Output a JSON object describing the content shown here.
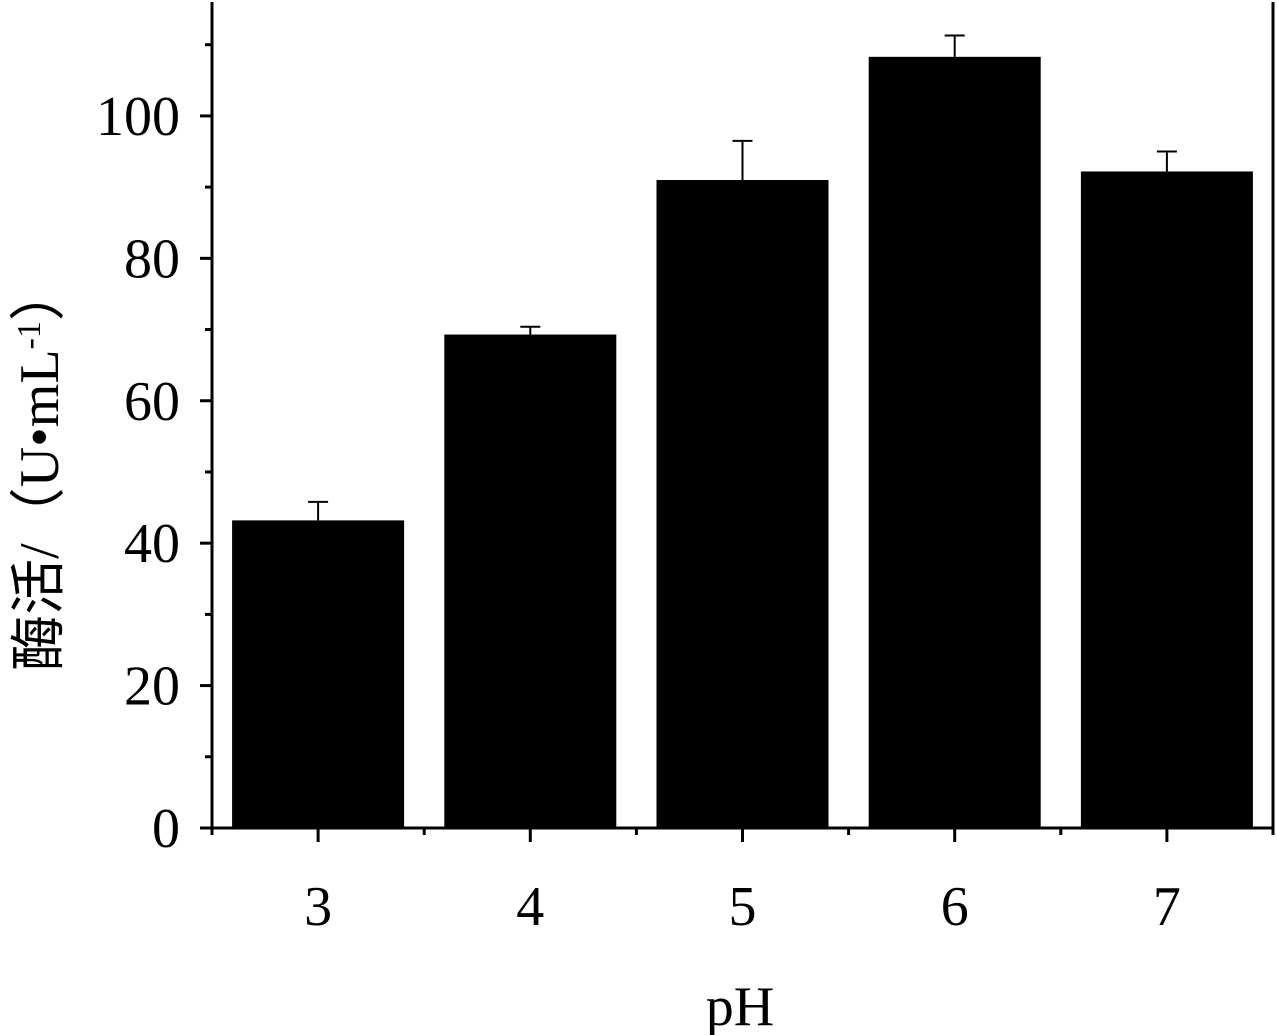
{
  "chart_data": {
    "type": "bar",
    "categories": [
      "3",
      "4",
      "5",
      "6",
      "7"
    ],
    "values": [
      43.2,
      69.3,
      91.0,
      108.3,
      92.2
    ],
    "error_plus": [
      2.6,
      1.1,
      5.5,
      3.0,
      2.8
    ],
    "xlabel": "pH",
    "ylabel": "酶活/（U•mL",
    "ylabel_superscript": "-1",
    "ylabel_suffix": "）",
    "ylim": [
      0,
      116
    ],
    "yticks": [
      0,
      20,
      40,
      60,
      80,
      100
    ],
    "y_minor_ticks": [
      10,
      30,
      50,
      70,
      90,
      110
    ],
    "grid": false,
    "colors": {
      "bar": "#000000",
      "axis": "#000000"
    }
  }
}
